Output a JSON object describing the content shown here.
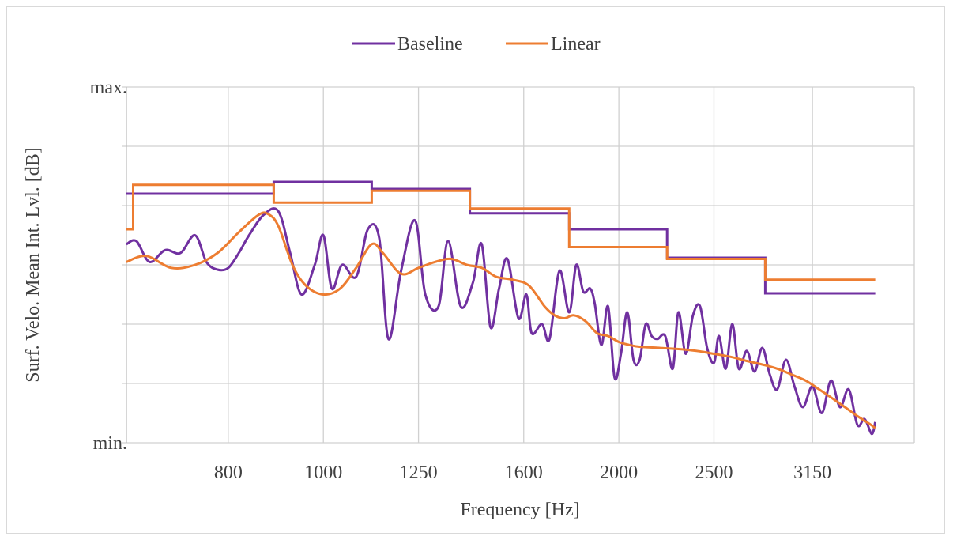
{
  "chart_data": {
    "type": "line",
    "title": "",
    "xlabel": "Frequency [Hz]",
    "ylabel": "Surf. Velo. Mean Int. Lvl. [dB]",
    "x_scale": "log",
    "xlim": [
      630,
      4000
    ],
    "ylim": [
      0,
      6
    ],
    "x_ticks": [
      800,
      1000,
      1250,
      1600,
      2000,
      2500,
      3150
    ],
    "y_tick_labels": [
      {
        "y": 6,
        "label": "max."
      },
      {
        "y": 0,
        "label": "min."
      }
    ],
    "y_grid": [
      0,
      1,
      2,
      3,
      4,
      5,
      6
    ],
    "grid": true,
    "legend_position": "top-center",
    "series": [
      {
        "name": "Baseline",
        "color": "#7030a0",
        "step": {
          "edges": [
            630,
            890,
            1120,
            1410,
            1780,
            2240,
            2820,
            3650
          ],
          "values": [
            4.2,
            4.4,
            4.28,
            3.87,
            3.6,
            3.12,
            2.52
          ]
        },
        "curve": {
          "x": [
            630,
            645,
            665,
            690,
            715,
            740,
            760,
            780,
            800,
            820,
            840,
            870,
            900,
            925,
            950,
            980,
            1000,
            1020,
            1045,
            1080,
            1110,
            1140,
            1165,
            1200,
            1240,
            1270,
            1310,
            1340,
            1380,
            1420,
            1450,
            1480,
            1510,
            1540,
            1580,
            1610,
            1630,
            1670,
            1700,
            1740,
            1780,
            1810,
            1840,
            1870,
            1890,
            1920,
            1950,
            1980,
            2010,
            2040,
            2070,
            2100,
            2130,
            2160,
            2190,
            2230,
            2270,
            2300,
            2340,
            2380,
            2420,
            2460,
            2500,
            2530,
            2570,
            2610,
            2650,
            2700,
            2750,
            2800,
            2850,
            2900,
            2960,
            3020,
            3080,
            3150,
            3220,
            3290,
            3360,
            3430,
            3500,
            3560,
            3620,
            3650
          ],
          "y": [
            3.35,
            3.4,
            3.05,
            3.25,
            3.2,
            3.5,
            3.05,
            2.92,
            2.95,
            3.2,
            3.5,
            3.85,
            3.9,
            3.2,
            2.5,
            3.0,
            3.5,
            2.6,
            3.0,
            2.8,
            3.6,
            3.45,
            1.75,
            2.9,
            3.75,
            2.5,
            2.3,
            3.4,
            2.3,
            2.7,
            3.35,
            1.95,
            2.6,
            3.1,
            2.1,
            2.5,
            1.85,
            2.0,
            1.75,
            2.9,
            2.2,
            3.0,
            2.55,
            2.6,
            2.35,
            1.65,
            2.3,
            1.1,
            1.5,
            2.2,
            1.4,
            1.4,
            2.0,
            1.8,
            1.75,
            1.8,
            1.25,
            2.2,
            1.5,
            2.15,
            2.3,
            1.6,
            1.35,
            1.8,
            1.25,
            2.0,
            1.25,
            1.55,
            1.2,
            1.6,
            1.15,
            0.9,
            1.4,
            0.95,
            0.6,
            0.95,
            0.5,
            1.05,
            0.6,
            0.9,
            0.3,
            0.4,
            0.15,
            0.35
          ]
        }
      },
      {
        "name": "Linear",
        "color": "#ed7d31",
        "step": {
          "edges": [
            630,
            640,
            890,
            1120,
            1410,
            1780,
            2240,
            2820,
            3650
          ],
          "values": [
            3.6,
            4.35,
            4.05,
            4.25,
            3.95,
            3.3,
            3.1,
            2.75
          ]
        },
        "curve": {
          "x": [
            630,
            660,
            700,
            740,
            780,
            820,
            860,
            880,
            900,
            930,
            960,
            1000,
            1040,
            1080,
            1120,
            1150,
            1200,
            1250,
            1300,
            1350,
            1400,
            1450,
            1500,
            1560,
            1620,
            1680,
            1720,
            1760,
            1800,
            1850,
            1900,
            1950,
            2000,
            2050,
            2100,
            2200,
            2300,
            2400,
            2500,
            2600,
            2700,
            2800,
            2900,
            3000,
            3100,
            3200,
            3300,
            3400,
            3500,
            3600,
            3650
          ],
          "y": [
            3.05,
            3.15,
            2.95,
            3.0,
            3.2,
            3.55,
            3.85,
            3.85,
            3.65,
            3.0,
            2.65,
            2.5,
            2.6,
            2.95,
            3.35,
            3.2,
            2.85,
            2.95,
            3.05,
            3.1,
            3.0,
            2.95,
            2.8,
            2.75,
            2.65,
            2.3,
            2.15,
            2.1,
            2.15,
            2.05,
            1.85,
            1.8,
            1.7,
            1.65,
            1.62,
            1.6,
            1.58,
            1.55,
            1.5,
            1.45,
            1.38,
            1.32,
            1.25,
            1.15,
            1.05,
            0.9,
            0.75,
            0.6,
            0.45,
            0.32,
            0.25
          ]
        }
      }
    ]
  }
}
